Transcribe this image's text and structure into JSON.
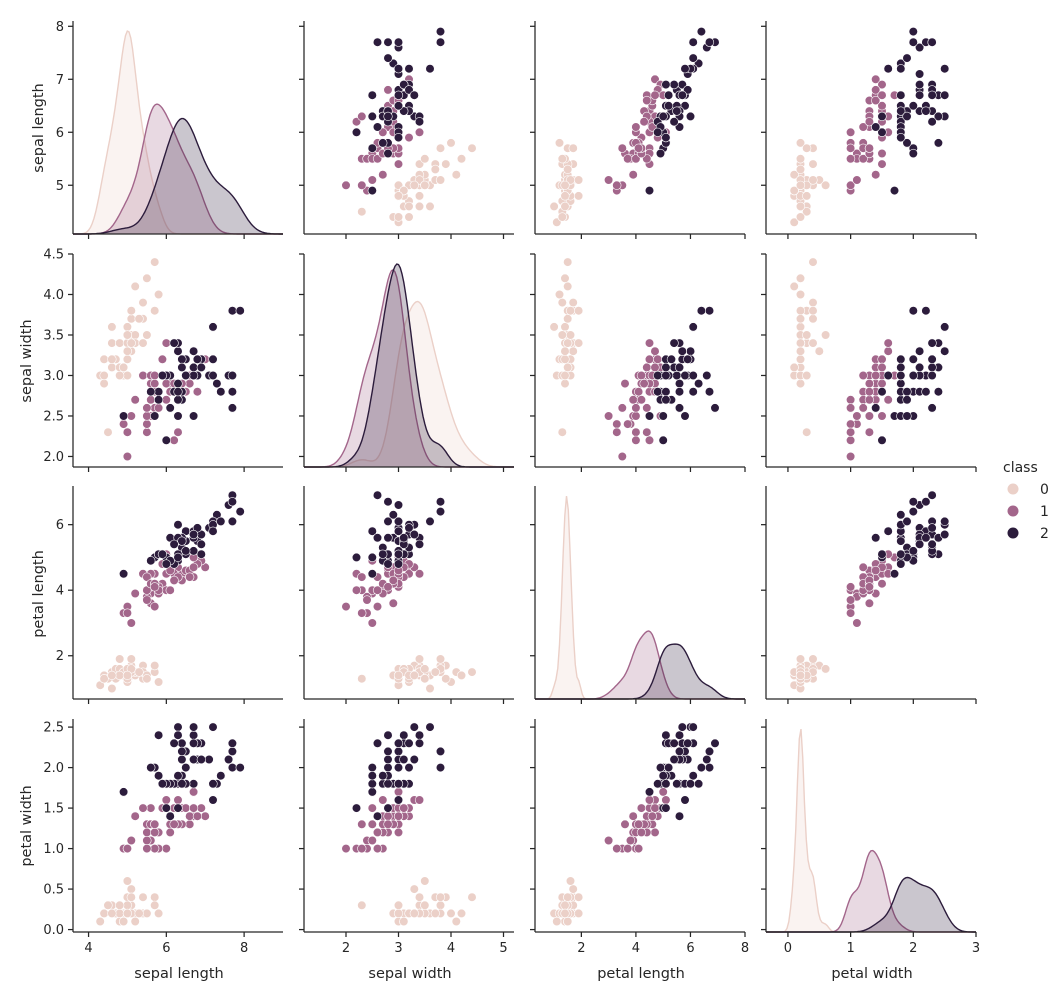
{
  "chart_data": {
    "type": "scatter",
    "subtype": "pairplot",
    "variables": [
      "sepal length",
      "sepal width",
      "petal length",
      "petal width"
    ],
    "hue": {
      "title": "class",
      "classes": [
        {
          "label": "0",
          "color": "#ebd0c8"
        },
        {
          "label": "1",
          "color": "#a3668b"
        },
        {
          "label": "2",
          "color": "#2c1c3c"
        }
      ]
    },
    "axes": [
      {
        "name": "sepal length",
        "range": [
          3.6,
          9.0
        ],
        "ticks": [
          4,
          6,
          8
        ],
        "tick_labels": [
          "4",
          "6",
          "8"
        ],
        "yrange": [
          4.08,
          8.1
        ],
        "yticks": [
          5,
          6,
          7,
          8
        ],
        "ytick_labels": [
          "5",
          "6",
          "7",
          "8"
        ]
      },
      {
        "name": "sepal width",
        "range": [
          1.2,
          5.2
        ],
        "ticks": [
          2,
          3,
          4,
          5
        ],
        "tick_labels": [
          "2",
          "3",
          "4",
          "5"
        ],
        "yrange": [
          1.87,
          4.5
        ],
        "yticks": [
          2.0,
          2.5,
          3.0,
          3.5,
          4.0,
          4.5
        ],
        "ytick_labels": [
          "2.0",
          "2.5",
          "3.0",
          "3.5",
          "4.0",
          "4.5"
        ]
      },
      {
        "name": "petal length",
        "range": [
          0.3,
          8.0
        ],
        "ticks": [
          2,
          4,
          6,
          8
        ],
        "tick_labels": [
          "2",
          "4",
          "6",
          "8"
        ],
        "yrange": [
          0.68,
          7.18
        ],
        "yticks": [
          2,
          4,
          6
        ],
        "ytick_labels": [
          "2",
          "4",
          "6"
        ]
      },
      {
        "name": "petal width",
        "range": [
          -0.35,
          3.0
        ],
        "ticks": [
          0,
          1,
          2,
          3
        ],
        "tick_labels": [
          "0",
          "1",
          "2",
          "3"
        ],
        "yrange": [
          -0.03,
          2.6
        ],
        "yticks": [
          0.0,
          0.5,
          1.0,
          1.5,
          2.0,
          2.5
        ],
        "ytick_labels": [
          "0.0",
          "0.5",
          "1.0",
          "1.5",
          "2.0",
          "2.5"
        ]
      }
    ],
    "data": {
      "0": [
        [
          5.1,
          3.5,
          1.4,
          0.2
        ],
        [
          4.9,
          3.0,
          1.4,
          0.2
        ],
        [
          4.7,
          3.2,
          1.3,
          0.2
        ],
        [
          4.6,
          3.1,
          1.5,
          0.2
        ],
        [
          5.0,
          3.6,
          1.4,
          0.2
        ],
        [
          5.4,
          3.9,
          1.7,
          0.4
        ],
        [
          4.6,
          3.4,
          1.4,
          0.3
        ],
        [
          5.0,
          3.4,
          1.5,
          0.2
        ],
        [
          4.4,
          2.9,
          1.4,
          0.2
        ],
        [
          4.9,
          3.1,
          1.5,
          0.1
        ],
        [
          5.4,
          3.7,
          1.5,
          0.2
        ],
        [
          4.8,
          3.4,
          1.6,
          0.2
        ],
        [
          4.8,
          3.0,
          1.4,
          0.1
        ],
        [
          4.3,
          3.0,
          1.1,
          0.1
        ],
        [
          5.8,
          4.0,
          1.2,
          0.2
        ],
        [
          5.7,
          4.4,
          1.5,
          0.4
        ],
        [
          5.4,
          3.9,
          1.3,
          0.4
        ],
        [
          5.1,
          3.5,
          1.4,
          0.3
        ],
        [
          5.7,
          3.8,
          1.7,
          0.3
        ],
        [
          5.1,
          3.8,
          1.5,
          0.3
        ],
        [
          5.4,
          3.4,
          1.7,
          0.2
        ],
        [
          5.1,
          3.7,
          1.5,
          0.4
        ],
        [
          4.6,
          3.6,
          1.0,
          0.2
        ],
        [
          5.1,
          3.3,
          1.7,
          0.5
        ],
        [
          4.8,
          3.4,
          1.9,
          0.2
        ],
        [
          5.0,
          3.0,
          1.6,
          0.2
        ],
        [
          5.0,
          3.4,
          1.6,
          0.4
        ],
        [
          5.2,
          3.5,
          1.5,
          0.2
        ],
        [
          5.2,
          3.4,
          1.4,
          0.2
        ],
        [
          4.7,
          3.2,
          1.6,
          0.2
        ],
        [
          4.8,
          3.1,
          1.6,
          0.2
        ],
        [
          5.4,
          3.4,
          1.5,
          0.4
        ],
        [
          5.2,
          4.1,
          1.5,
          0.1
        ],
        [
          5.5,
          4.2,
          1.4,
          0.2
        ],
        [
          4.9,
          3.1,
          1.5,
          0.1
        ],
        [
          5.0,
          3.2,
          1.2,
          0.2
        ],
        [
          5.5,
          3.5,
          1.3,
          0.2
        ],
        [
          4.9,
          3.1,
          1.5,
          0.1
        ],
        [
          4.4,
          3.0,
          1.3,
          0.2
        ],
        [
          5.1,
          3.4,
          1.5,
          0.2
        ],
        [
          5.0,
          3.5,
          1.3,
          0.3
        ],
        [
          4.5,
          2.3,
          1.3,
          0.3
        ],
        [
          4.4,
          3.2,
          1.3,
          0.2
        ],
        [
          5.0,
          3.5,
          1.6,
          0.6
        ],
        [
          5.1,
          3.8,
          1.9,
          0.4
        ],
        [
          4.8,
          3.0,
          1.4,
          0.3
        ],
        [
          5.1,
          3.8,
          1.6,
          0.2
        ],
        [
          4.6,
          3.2,
          1.4,
          0.2
        ],
        [
          5.3,
          3.7,
          1.5,
          0.2
        ],
        [
          5.0,
          3.3,
          1.4,
          0.2
        ]
      ],
      "1": [
        [
          7.0,
          3.2,
          4.7,
          1.4
        ],
        [
          6.4,
          3.2,
          4.5,
          1.5
        ],
        [
          6.9,
          3.1,
          4.9,
          1.5
        ],
        [
          5.5,
          2.3,
          4.0,
          1.3
        ],
        [
          6.5,
          2.8,
          4.6,
          1.5
        ],
        [
          5.7,
          2.8,
          4.5,
          1.3
        ],
        [
          6.3,
          3.3,
          4.7,
          1.6
        ],
        [
          4.9,
          2.4,
          3.3,
          1.0
        ],
        [
          6.6,
          2.9,
          4.6,
          1.3
        ],
        [
          5.2,
          2.7,
          3.9,
          1.4
        ],
        [
          5.0,
          2.0,
          3.5,
          1.0
        ],
        [
          5.9,
          3.0,
          4.2,
          1.5
        ],
        [
          6.0,
          2.2,
          4.0,
          1.0
        ],
        [
          6.1,
          2.9,
          4.7,
          1.4
        ],
        [
          5.6,
          2.9,
          3.6,
          1.3
        ],
        [
          6.7,
          3.1,
          4.4,
          1.4
        ],
        [
          5.6,
          3.0,
          4.5,
          1.5
        ],
        [
          5.8,
          2.7,
          4.1,
          1.0
        ],
        [
          6.2,
          2.2,
          4.5,
          1.5
        ],
        [
          5.6,
          2.5,
          3.9,
          1.1
        ],
        [
          5.9,
          3.2,
          4.8,
          1.8
        ],
        [
          6.1,
          2.8,
          4.0,
          1.3
        ],
        [
          6.3,
          2.5,
          4.9,
          1.5
        ],
        [
          6.1,
          2.8,
          4.7,
          1.2
        ],
        [
          6.4,
          2.9,
          4.3,
          1.3
        ],
        [
          6.6,
          3.0,
          4.4,
          1.4
        ],
        [
          6.8,
          2.8,
          4.8,
          1.4
        ],
        [
          6.7,
          3.0,
          5.0,
          1.7
        ],
        [
          6.0,
          2.9,
          4.5,
          1.5
        ],
        [
          5.7,
          2.6,
          3.5,
          1.0
        ],
        [
          5.5,
          2.4,
          3.8,
          1.1
        ],
        [
          5.5,
          2.4,
          3.7,
          1.0
        ],
        [
          5.8,
          2.7,
          3.9,
          1.2
        ],
        [
          6.0,
          2.7,
          5.1,
          1.6
        ],
        [
          5.4,
          3.0,
          4.5,
          1.5
        ],
        [
          6.0,
          3.4,
          4.5,
          1.6
        ],
        [
          6.7,
          3.1,
          4.7,
          1.5
        ],
        [
          6.3,
          2.3,
          4.4,
          1.3
        ],
        [
          5.6,
          3.0,
          4.1,
          1.3
        ],
        [
          5.5,
          2.5,
          4.0,
          1.3
        ],
        [
          5.5,
          2.6,
          4.4,
          1.2
        ],
        [
          6.1,
          3.0,
          4.6,
          1.4
        ],
        [
          5.8,
          2.6,
          4.0,
          1.2
        ],
        [
          5.0,
          2.3,
          3.3,
          1.0
        ],
        [
          5.6,
          2.7,
          4.2,
          1.3
        ],
        [
          5.7,
          3.0,
          4.2,
          1.2
        ],
        [
          5.7,
          2.9,
          4.2,
          1.3
        ],
        [
          6.2,
          2.9,
          4.3,
          1.3
        ],
        [
          5.1,
          2.5,
          3.0,
          1.1
        ],
        [
          5.7,
          2.8,
          4.1,
          1.3
        ]
      ],
      "2": [
        [
          6.3,
          3.3,
          6.0,
          2.5
        ],
        [
          5.8,
          2.7,
          5.1,
          1.9
        ],
        [
          7.1,
          3.0,
          5.9,
          2.1
        ],
        [
          6.3,
          2.9,
          5.6,
          1.8
        ],
        [
          6.5,
          3.0,
          5.8,
          2.2
        ],
        [
          7.6,
          3.0,
          6.6,
          2.1
        ],
        [
          4.9,
          2.5,
          4.5,
          1.7
        ],
        [
          7.3,
          2.9,
          6.3,
          1.8
        ],
        [
          6.7,
          2.5,
          5.8,
          1.8
        ],
        [
          7.2,
          3.6,
          6.1,
          2.5
        ],
        [
          6.5,
          3.2,
          5.1,
          2.0
        ],
        [
          6.4,
          2.7,
          5.3,
          1.9
        ],
        [
          6.8,
          3.0,
          5.5,
          2.1
        ],
        [
          5.7,
          2.5,
          5.0,
          2.0
        ],
        [
          5.8,
          2.8,
          5.1,
          2.4
        ],
        [
          6.4,
          3.2,
          5.3,
          2.3
        ],
        [
          6.5,
          3.0,
          5.5,
          1.8
        ],
        [
          7.7,
          3.8,
          6.7,
          2.2
        ],
        [
          7.7,
          2.6,
          6.9,
          2.3
        ],
        [
          6.0,
          2.2,
          5.0,
          1.5
        ],
        [
          6.9,
          3.2,
          5.7,
          2.3
        ],
        [
          5.6,
          2.8,
          4.9,
          2.0
        ],
        [
          7.7,
          2.8,
          6.7,
          2.0
        ],
        [
          6.3,
          2.7,
          4.9,
          1.8
        ],
        [
          6.7,
          3.3,
          5.7,
          2.1
        ],
        [
          7.2,
          3.2,
          6.0,
          1.8
        ],
        [
          6.2,
          2.8,
          4.8,
          1.8
        ],
        [
          6.1,
          3.0,
          4.9,
          1.8
        ],
        [
          6.4,
          2.8,
          5.6,
          2.1
        ],
        [
          7.2,
          3.0,
          5.8,
          1.6
        ],
        [
          7.4,
          2.8,
          6.1,
          1.9
        ],
        [
          7.9,
          3.8,
          6.4,
          2.0
        ],
        [
          6.4,
          2.8,
          5.6,
          2.2
        ],
        [
          6.3,
          2.8,
          5.1,
          1.5
        ],
        [
          6.1,
          2.6,
          5.6,
          1.4
        ],
        [
          7.7,
          3.0,
          6.1,
          2.3
        ],
        [
          6.3,
          3.4,
          5.6,
          2.4
        ],
        [
          6.4,
          3.1,
          5.5,
          1.8
        ],
        [
          6.0,
          3.0,
          4.8,
          1.8
        ],
        [
          6.9,
          3.1,
          5.4,
          2.1
        ],
        [
          6.7,
          3.1,
          5.6,
          2.4
        ],
        [
          6.9,
          3.1,
          5.1,
          2.3
        ],
        [
          5.8,
          2.7,
          5.1,
          1.9
        ],
        [
          6.8,
          3.2,
          5.9,
          2.3
        ],
        [
          6.7,
          3.3,
          5.7,
          2.5
        ],
        [
          6.7,
          3.0,
          5.2,
          2.3
        ],
        [
          6.3,
          2.5,
          5.0,
          1.9
        ],
        [
          6.5,
          3.0,
          5.2,
          2.0
        ],
        [
          6.2,
          3.4,
          5.4,
          2.3
        ],
        [
          5.9,
          3.0,
          5.1,
          1.8
        ]
      ]
    }
  }
}
